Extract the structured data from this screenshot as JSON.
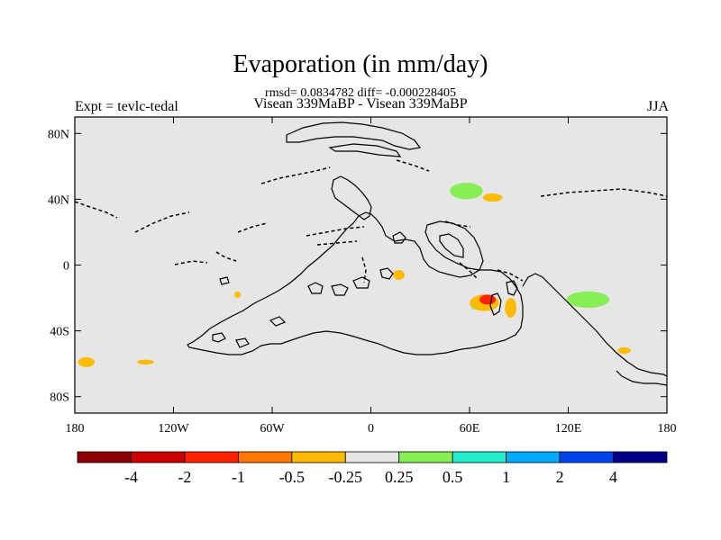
{
  "chart_data": {
    "type": "heatmap",
    "title": "Evaporation (in mm/day)",
    "stats": "rmsd= 0.0834782 diff= -0.000228405",
    "subtitle": "Visean 339MaBP - Visean 339MaBP",
    "left_label": "Expt = tevlc-tedal",
    "right_label": "JJA",
    "x_range": [
      -180,
      180
    ],
    "y_range": [
      -90,
      90
    ],
    "x_ticks": [
      {
        "value": -180,
        "label": "180"
      },
      {
        "value": -120,
        "label": "120W"
      },
      {
        "value": -60,
        "label": "60W"
      },
      {
        "value": 0,
        "label": "0"
      },
      {
        "value": 60,
        "label": "60E"
      },
      {
        "value": 120,
        "label": "120E"
      },
      {
        "value": 180,
        "label": "180"
      }
    ],
    "y_ticks": [
      {
        "value": 80,
        "label": "80N"
      },
      {
        "value": 40,
        "label": "40N"
      },
      {
        "value": 0,
        "label": "0"
      },
      {
        "value": -40,
        "label": "40S"
      },
      {
        "value": -80,
        "label": "80S"
      }
    ],
    "colorbar": {
      "colors": [
        "#8b0000",
        "#cc0000",
        "#ff2200",
        "#ff7700",
        "#ffbb00",
        "#e6e6e6",
        "#88ee55",
        "#22eecc",
        "#00aaff",
        "#0044ee",
        "#000088"
      ],
      "labels": [
        "-4",
        "-2",
        "-1",
        "-0.5",
        "-0.25",
        "0.25",
        "0.5",
        "1",
        "2",
        "4"
      ]
    },
    "anomalies": [
      {
        "name": "green-patch-north-central",
        "lon": 58,
        "lat": 45,
        "rlon": 10,
        "rlat": 5,
        "color": "#88ee55"
      },
      {
        "name": "orange-patch-north-central",
        "lon": 74,
        "lat": 41,
        "rlon": 6,
        "rlat": 2.5,
        "color": "#ffbb00"
      },
      {
        "name": "orange-patch-equatorial",
        "lon": 17,
        "lat": -6,
        "rlon": 3.5,
        "rlat": 3,
        "color": "#ffbb00"
      },
      {
        "name": "small-orange-patch-west",
        "lon": -81,
        "lat": -18,
        "rlon": 2,
        "rlat": 2,
        "color": "#ffbb00"
      },
      {
        "name": "orange-patch-east-left",
        "lon": 69,
        "lat": -23,
        "rlon": 9,
        "rlat": 5,
        "color": "#ffbb00"
      },
      {
        "name": "red-patch-east",
        "lon": 71,
        "lat": -21,
        "rlon": 5,
        "rlat": 3,
        "color": "#ff2200"
      },
      {
        "name": "orange-patch-east-right",
        "lon": 85,
        "lat": -26,
        "rlon": 3.5,
        "rlat": 6,
        "color": "#ffbb00"
      },
      {
        "name": "tiny-green-dot",
        "lon": 62,
        "lat": -26,
        "rlon": 0.8,
        "rlat": 1,
        "color": "#88ee55"
      },
      {
        "name": "green-patch-east",
        "lon": 132,
        "lat": -21,
        "rlon": 13,
        "rlat": 5,
        "color": "#88ee55"
      },
      {
        "name": "orange-patch-southeast",
        "lon": 154,
        "lat": -52,
        "rlon": 4,
        "rlat": 2,
        "color": "#ffbb00"
      },
      {
        "name": "orange-patch-far-west",
        "lon": -173,
        "lat": -59,
        "rlon": 5,
        "rlat": 3,
        "color": "#ffbb00"
      },
      {
        "name": "orange-patch-southwest",
        "lon": -137,
        "lat": -59,
        "rlon": 5,
        "rlat": 1.5,
        "color": "#ffbb00"
      }
    ]
  }
}
